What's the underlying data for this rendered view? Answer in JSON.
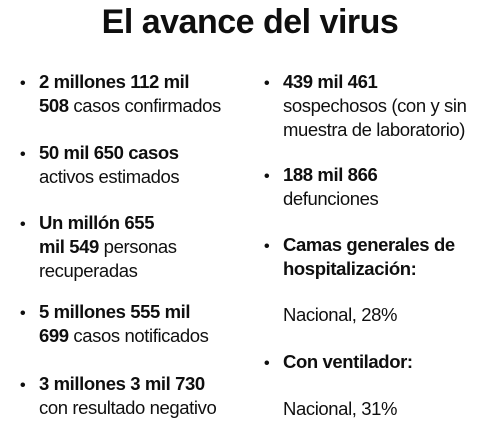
{
  "title": "El avance del virus",
  "bullet_glyph": "•",
  "left_column": {
    "confirmed": {
      "line1": "2 millones 112 mil",
      "line2_bold": "508",
      "line2_rest": " casos confirmados"
    },
    "active": {
      "line1": "50 mil 650 casos",
      "line2": "activos estimados"
    },
    "recovered": {
      "line1": "Un millón 655",
      "line2_bold": "mil 549",
      "line2_rest": " personas",
      "line3": "recuperadas"
    },
    "notified": {
      "line1": "5 millones 555 mil",
      "line2_bold": "699",
      "line2_rest": " casos notificados"
    },
    "negative": {
      "line1": "3 millones 3 mil 730",
      "line2": "con resultado negativo"
    }
  },
  "right_column": {
    "suspected": {
      "line1": "439 mil 461",
      "line2": "sospechosos (con y sin",
      "line3": "muestra de laboratorio)"
    },
    "deaths": {
      "line1": "188 mil 866",
      "line2": "defunciones"
    },
    "beds": {
      "line1": "Camas generales de",
      "line2": "hospitalización:",
      "value": "Nacional, 28%"
    },
    "ventilator": {
      "line1": "Con ventilador:",
      "value": "Nacional, 31%"
    }
  }
}
